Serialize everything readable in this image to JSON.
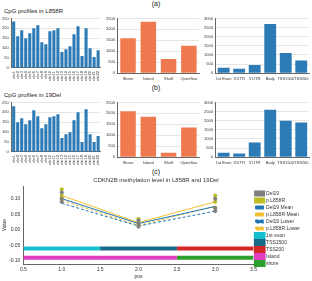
{
  "figure": {
    "panels": [
      {
        "label": "(a)",
        "title": "CpG profiles in L858R"
      },
      {
        "label": "(b)",
        "title": "CpG profiles in 19Del"
      },
      {
        "label": "(c)"
      }
    ]
  },
  "chart_data": [
    {
      "type": "bar",
      "categories": [
        "chr1",
        "chr2",
        "chr3",
        "chr4",
        "chr5",
        "chr6",
        "chr7",
        "chr8",
        "chr9",
        "chr10",
        "chr11",
        "chr12",
        "chr13",
        "chr14",
        "chr15",
        "chr16",
        "chr17",
        "chr18",
        "chr19",
        "chr20",
        "chr21",
        "chr22"
      ],
      "values": [
        235,
        160,
        190,
        150,
        175,
        200,
        215,
        130,
        120,
        185,
        190,
        200,
        80,
        95,
        110,
        170,
        210,
        60,
        200,
        100,
        55,
        90
      ],
      "color": "#2c7bb6",
      "ylim": [
        0,
        250
      ],
      "yticks": [
        0,
        50,
        100,
        150,
        200,
        250
      ],
      "grid": true
    },
    {
      "type": "bar",
      "categories": [
        "Shore",
        "Island",
        "Shelf",
        "OpenSea"
      ],
      "values": [
        1600,
        2350,
        650,
        1250
      ],
      "color": "#ef7a50",
      "ylim": [
        0,
        2500
      ],
      "yticks": [
        0,
        500,
        1000,
        1500,
        2000,
        2500
      ],
      "grid": true
    },
    {
      "type": "bar",
      "categories": [
        "1st Exon",
        "3'UTR",
        "5'UTR",
        "Body",
        "TSS1500",
        "TSS200"
      ],
      "values": [
        300,
        250,
        450,
        2700,
        1100,
        700
      ],
      "color": "#2c7bb6",
      "ylim": [
        0,
        3000
      ],
      "yticks": [
        0,
        500,
        1000,
        1500,
        2000,
        2500,
        3000
      ],
      "grid": true
    },
    {
      "type": "bar",
      "categories": [
        "chr1",
        "chr2",
        "chr3",
        "chr4",
        "chr5",
        "chr6",
        "chr7",
        "chr8",
        "chr9",
        "chr10",
        "chr11",
        "chr12",
        "chr13",
        "chr14",
        "chr15",
        "chr16",
        "chr17",
        "chr18",
        "chr19",
        "chr20",
        "chr21",
        "chr22"
      ],
      "values": [
        230,
        150,
        170,
        140,
        160,
        210,
        180,
        120,
        140,
        175,
        180,
        190,
        70,
        90,
        100,
        160,
        200,
        50,
        215,
        90,
        50,
        80
      ],
      "color": "#2c7bb6",
      "ylim": [
        0,
        250
      ],
      "yticks": [
        0,
        50,
        100,
        150,
        200,
        250
      ],
      "grid": true
    },
    {
      "type": "bar",
      "categories": [
        "Shore",
        "Island",
        "Shelf",
        "OpenSea"
      ],
      "values": [
        2100,
        1850,
        200,
        1350
      ],
      "color": "#ef7a50",
      "ylim": [
        0,
        2500
      ],
      "yticks": [
        0,
        500,
        1000,
        1500,
        2000,
        2500
      ],
      "grid": true
    },
    {
      "type": "bar",
      "categories": [
        "1st Exon",
        "3'UTR",
        "5'UTR",
        "Body",
        "TSS1500",
        "TSS200"
      ],
      "values": [
        250,
        200,
        800,
        2600,
        2000,
        1900
      ],
      "color": "#2c7bb6",
      "ylim": [
        0,
        3000
      ],
      "yticks": [
        0,
        500,
        1000,
        1500,
        2000,
        2500,
        3000
      ],
      "grid": true
    },
    {
      "type": "line",
      "title": "CDKN2B methylation level in L858R and 19Del",
      "x_label": "pos",
      "y_label": "Value",
      "xlim": [
        0.5,
        3.5
      ],
      "xticks": [
        0.5,
        {
          "value": 1,
          "label": "1.0"
        },
        1.5,
        {
          "value": 2,
          "label": "2.0"
        },
        2.5,
        {
          "value": 3,
          "label": "3.0"
        },
        3.5
      ],
      "ylim": [
        -0.11,
        0.14
      ],
      "yticks": [
        {
          "value": -0.1,
          "label": "-0.10"
        },
        -0.05,
        {
          "value": 0,
          "label": "0.00"
        },
        0.05,
        {
          "value": 0.1,
          "label": "0.10"
        }
      ],
      "grid": false,
      "legend": "right",
      "series": [
        {
          "name": "Del19",
          "type": "scatter",
          "color": "#7f7f7f",
          "marker": "circle",
          "x": [
            1,
            1,
            1,
            2,
            2,
            2,
            3,
            3,
            3
          ],
          "values": [
            0.09,
            0.1,
            0.12,
            0.01,
            0.02,
            0.03,
            0.06,
            0.07,
            0.1
          ]
        },
        {
          "name": "p.L858R",
          "type": "scatter",
          "color": "#bcbd22",
          "marker": "circle",
          "x": [
            1,
            1,
            1,
            2,
            2,
            2,
            3,
            3,
            3
          ],
          "values": [
            0.1,
            0.11,
            0.13,
            0.015,
            0.02,
            0.035,
            0.07,
            0.09,
            0.11
          ]
        },
        {
          "name": "Del19 Mean",
          "type": "line",
          "color": "#1f77b4",
          "line_style": "solid",
          "x": [
            1,
            2,
            3
          ],
          "values": [
            0.1,
            0.02,
            0.075
          ]
        },
        {
          "name": "p.L858R Mean",
          "type": "line",
          "color": "#f0c030",
          "line_style": "solid",
          "x": [
            1,
            2,
            3
          ],
          "values": [
            0.11,
            0.023,
            0.09
          ]
        },
        {
          "name": "Del19 Lower",
          "type": "line",
          "color": "#1f77b4",
          "line_style": "dashed",
          "x": [
            1,
            2,
            3
          ],
          "values": [
            0.085,
            0.012,
            0.06
          ]
        },
        {
          "name": "p.L858R Lower",
          "type": "line",
          "color": "#f0c030",
          "line_style": "dashed",
          "x": [
            1,
            2,
            3
          ],
          "values": [
            0.095,
            0.014,
            0.075
          ]
        },
        {
          "name": "1st exon",
          "type": "band",
          "color": "#17becf",
          "x": [
            0.5,
            1.5
          ],
          "values": [
            -0.06,
            -0.06
          ]
        },
        {
          "name": "TSS1500",
          "type": "band",
          "color": "#1a6a8a",
          "x": [
            1.5,
            2.5
          ],
          "values": [
            -0.06,
            -0.06
          ]
        },
        {
          "name": "TSS200",
          "type": "band",
          "color": "#d62728",
          "x": [
            2.5,
            3.5
          ],
          "values": [
            -0.06,
            -0.06
          ]
        },
        {
          "name": "Island",
          "type": "band",
          "color": "#e040c0",
          "x": [
            0.5,
            2.5
          ],
          "values": [
            -0.09,
            -0.09
          ]
        },
        {
          "name": "shore",
          "type": "band",
          "color": "#2ca02c",
          "x": [
            2.5,
            3.5
          ],
          "values": [
            -0.09,
            -0.09
          ]
        }
      ]
    }
  ]
}
